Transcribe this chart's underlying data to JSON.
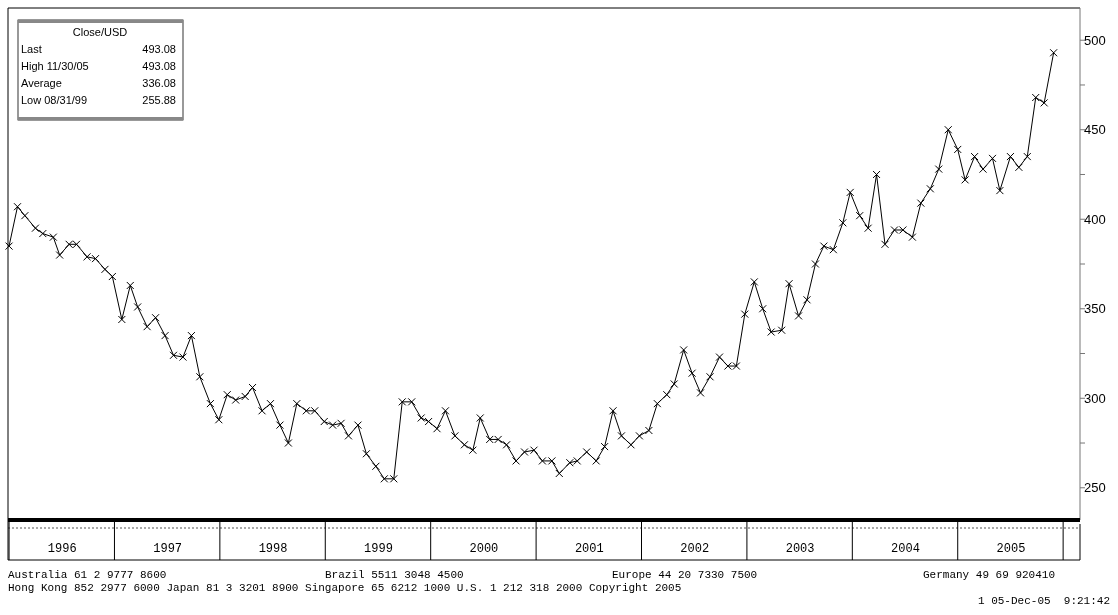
{
  "chart_data": {
    "type": "line",
    "marker": "cross",
    "line_style": "solid",
    "grid": false,
    "xlim": [
      1995.99,
      2006.16
    ],
    "ylim": [
      232,
      518
    ],
    "yticks": [
      250,
      {
        "value": 275,
        "label": null
      },
      300,
      {
        "value": 325,
        "label": null
      },
      350,
      {
        "value": 375,
        "label": null
      },
      400,
      {
        "value": 425,
        "label": null
      },
      450,
      {
        "value": 475,
        "label": null
      },
      500
    ],
    "xticks": [
      {
        "value": 1996.5,
        "label": "1996"
      },
      {
        "value": 1997.5,
        "label": "1997"
      },
      {
        "value": 1998.5,
        "label": "1998"
      },
      {
        "value": 1999.5,
        "label": "1999"
      },
      {
        "value": 2000.5,
        "label": "2000"
      },
      {
        "value": 2001.5,
        "label": "2001"
      },
      {
        "value": 2002.5,
        "label": "2002"
      },
      {
        "value": 2003.5,
        "label": "2003"
      },
      {
        "value": 2004.5,
        "label": "2004"
      },
      {
        "value": 2005.5,
        "label": "2005"
      }
    ],
    "series": [
      {
        "color": "#000000",
        "x": [
          1996.0,
          1996.08,
          1996.15,
          1996.25,
          1996.32,
          1996.42,
          1996.48,
          1996.57,
          1996.64,
          1996.74,
          1996.82,
          1996.91,
          1996.98,
          1997.07,
          1997.15,
          1997.22,
          1997.31,
          1997.39,
          1997.48,
          1997.56,
          1997.65,
          1997.73,
          1997.81,
          1997.91,
          1997.99,
          1998.07,
          1998.15,
          1998.24,
          1998.31,
          1998.4,
          1998.48,
          1998.57,
          1998.65,
          1998.73,
          1998.82,
          1998.9,
          1998.99,
          1999.07,
          1999.15,
          1999.22,
          1999.31,
          1999.39,
          1999.48,
          1999.56,
          1999.65,
          1999.73,
          1999.82,
          1999.91,
          1999.98,
          2000.06,
          2000.14,
          2000.23,
          2000.32,
          2000.4,
          2000.47,
          2000.56,
          2000.64,
          2000.72,
          2000.81,
          2000.89,
          2000.98,
          2001.06,
          2001.15,
          2001.22,
          2001.32,
          2001.39,
          2001.48,
          2001.57,
          2001.65,
          2001.73,
          2001.81,
          2001.9,
          2001.98,
          2002.07,
          2002.15,
          2002.24,
          2002.31,
          2002.4,
          2002.48,
          2002.56,
          2002.65,
          2002.74,
          2002.82,
          2002.9,
          2002.98,
          2003.07,
          2003.15,
          2003.23,
          2003.33,
          2003.4,
          2003.49,
          2003.57,
          2003.65,
          2003.73,
          2003.82,
          2003.91,
          2003.98,
          2004.07,
          2004.15,
          2004.23,
          2004.31,
          2004.4,
          2004.48,
          2004.57,
          2004.65,
          2004.74,
          2004.82,
          2004.91,
          2005.0,
          2005.07,
          2005.16,
          2005.24,
          2005.33,
          2005.4,
          2005.5,
          2005.58,
          2005.66,
          2005.74,
          2005.82,
          2005.91
        ],
        "values": [
          385,
          407,
          402,
          395,
          392,
          390,
          380,
          386,
          386,
          379,
          378,
          372,
          368,
          344,
          363,
          351,
          340,
          345,
          335,
          324,
          323,
          335,
          312,
          297,
          288,
          302,
          299,
          301,
          306,
          293,
          297,
          285,
          275,
          297,
          293,
          293,
          287,
          285,
          286,
          279,
          285,
          269,
          262,
          255,
          255,
          298,
          298,
          289,
          287,
          283,
          293,
          279,
          274,
          271,
          289,
          277,
          277,
          274,
          265,
          270,
          271,
          265,
          265,
          258,
          264,
          265,
          270,
          265,
          273,
          293,
          279,
          274,
          279,
          282,
          297,
          302,
          308,
          327,
          314,
          303,
          312,
          323,
          318,
          318,
          347,
          365,
          350,
          337,
          338,
          364,
          346,
          355,
          375,
          385,
          383,
          398,
          415,
          402,
          395,
          425,
          386,
          394,
          394,
          390,
          409,
          417,
          428,
          450,
          439,
          422,
          435,
          428,
          434,
          416,
          435,
          429,
          435,
          468,
          465,
          493
        ]
      }
    ],
    "annotations": [
      "Close/USD",
      "Last",
      "493.08",
      "High  11/30/05",
      "493.08",
      "Average",
      "336.08",
      "Low  08/31/99",
      "255.88",
      "Australia 61 2 9777 8600",
      "Brazil 5511 3048 4500",
      "Europe 44 20 7330 7500",
      "Germany 49 69 920410",
      "Hong Kong 852 2977 6000 Japan 81 3 3201 8900 Singapore 65 6212 1000 U.S. 1 212 318 2000 Copyright 2005",
      "1 05-Dec-05  9:21:42"
    ]
  }
}
